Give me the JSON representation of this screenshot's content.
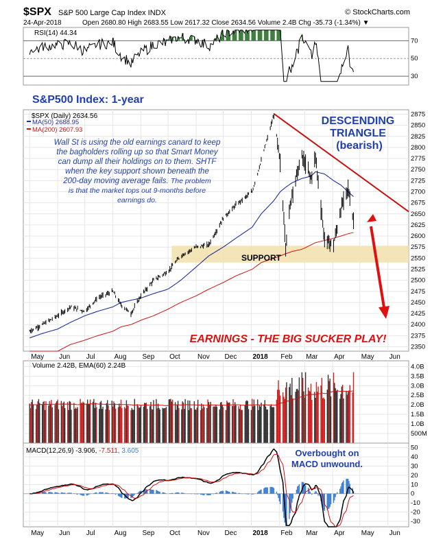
{
  "header": {
    "symbol": "$SPX",
    "name": "S&P 500 Large Cap Index  INDX",
    "source": "© StockCharts.com",
    "date": "24-Apr-2018",
    "quote": "Open 2680.80  High 2683.55  Low 2617.32  Close 2634.56  Volume 2.4B  Chg -35.73 (-1.34%) ▼"
  },
  "rsi": {
    "label": "RSI(14) 44.34",
    "ticks": [
      "70",
      "50",
      "30"
    ],
    "tick_values": [
      70,
      50,
      30
    ],
    "range": [
      20,
      85
    ]
  },
  "price": {
    "legend_symbol": "$SPX (Daily) 2634.56",
    "legend_ma50": "MA(50) 2688.95",
    "legend_ma200": "MA(200) 2607.93",
    "ylim": [
      2340,
      2885
    ],
    "ticks": [
      2875,
      2850,
      2825,
      2800,
      2775,
      2750,
      2725,
      2700,
      2675,
      2650,
      2625,
      2600,
      2575,
      2550,
      2525,
      2500,
      2475,
      2450,
      2425,
      2400,
      2375,
      2350
    ]
  },
  "annotations": {
    "title": "S&P500 Index: 1-year",
    "commentary_1": "Wall St is using the old earnings canard to keep",
    "commentary_2": "the bagholders rolling up so that Smart Money",
    "commentary_3": "can dump all their holdings on to them. SHTF",
    "commentary_4": "when the key support shown beneath the",
    "commentary_5": "200-day moving average fails.",
    "commentary_5b": "The problem",
    "commentary_6": "is that the market tops out 9-months before",
    "commentary_7": "earnings do.",
    "triangle_1": "DESCENDING",
    "triangle_2": "TRIANGLE",
    "triangle_3": "(bearish)",
    "support": "SUPPORT",
    "earnings": "EARNINGS - THE BIG SUCKER PLAY!",
    "macd_note_1": "Overbought on",
    "macd_note_2": "MACD unwound."
  },
  "volume": {
    "label": "Volume 2.42B, EMA(60) 2.24B",
    "ticks": [
      "4.0B",
      "3.5B",
      "3.0B",
      "2.5B",
      "2.0B",
      "1.5B",
      "1.0B",
      "500M"
    ],
    "tick_values": [
      4.0,
      3.5,
      3.0,
      2.5,
      2.0,
      1.5,
      1.0,
      0.5
    ],
    "ylim": [
      0,
      4.3
    ]
  },
  "macd": {
    "label_a": "MACD(12,26,9) -3.906,",
    "label_b": "-7.511,",
    "label_c": "3.605",
    "ticks": [
      "50",
      "40",
      "30",
      "20",
      "10",
      "0",
      "-10",
      "-20",
      "-30"
    ],
    "tick_values": [
      50,
      40,
      30,
      20,
      10,
      0,
      -10,
      -20,
      -30
    ],
    "ylim": [
      -36,
      55
    ]
  },
  "xaxis": {
    "months": [
      "May",
      "Jun",
      "Jul",
      "Aug",
      "Sep",
      "Oct",
      "Nov",
      "Dec",
      "2018",
      "Feb",
      "Mar",
      "Apr",
      "May",
      "Jun"
    ]
  },
  "colors": {
    "price": "#000000",
    "ma50": "#1f2f99",
    "ma200": "#d01010",
    "trend": "#c81010",
    "arrow": "#e01010",
    "annotation": "#2040b0",
    "support_zone": "#f3e2b0",
    "vol_up": "#333333",
    "vol_down": "#d02020",
    "rsi_fill": "#3f7f3f",
    "macd_hist": "#3f7fd0"
  },
  "chart_data": {
    "type": "line",
    "title": "S&P 500 Large Cap Index",
    "x": [
      "2017-05-01",
      "2017-05-15",
      "2017-06-01",
      "2017-06-15",
      "2017-07-01",
      "2017-07-15",
      "2017-08-01",
      "2017-08-10",
      "2017-08-21",
      "2017-09-01",
      "2017-09-15",
      "2017-10-01",
      "2017-10-15",
      "2017-11-01",
      "2017-11-15",
      "2017-12-01",
      "2017-12-15",
      "2018-01-02",
      "2018-01-12",
      "2018-01-26",
      "2018-02-02",
      "2018-02-08",
      "2018-02-15",
      "2018-02-26",
      "2018-03-08",
      "2018-03-13",
      "2018-03-23",
      "2018-04-02",
      "2018-04-10",
      "2018-04-18",
      "2018-04-24"
    ],
    "series": [
      {
        "name": "$SPX",
        "values": [
          2385,
          2400,
          2420,
          2440,
          2430,
          2460,
          2475,
          2445,
          2425,
          2465,
          2500,
          2520,
          2555,
          2575,
          2580,
          2640,
          2670,
          2700,
          2770,
          2873,
          2760,
          2580,
          2700,
          2779,
          2730,
          2780,
          2590,
          2580,
          2660,
          2708,
          2635
        ]
      },
      {
        "name": "MA(50)",
        "values": [
          2370,
          2380,
          2390,
          2405,
          2420,
          2430,
          2440,
          2450,
          2455,
          2460,
          2470,
          2480,
          2500,
          2530,
          2555,
          2575,
          2595,
          2620,
          2650,
          2680,
          2700,
          2710,
          2720,
          2730,
          2735,
          2745,
          2740,
          2725,
          2715,
          2700,
          2689
        ]
      },
      {
        "name": "MA(200)",
        "values": [
          2320,
          2330,
          2340,
          2355,
          2365,
          2375,
          2385,
          2395,
          2400,
          2410,
          2420,
          2435,
          2450,
          2465,
          2480,
          2495,
          2510,
          2525,
          2540,
          2550,
          2555,
          2560,
          2565,
          2570,
          2580,
          2585,
          2590,
          2595,
          2600,
          2605,
          2608
        ]
      }
    ]
  }
}
